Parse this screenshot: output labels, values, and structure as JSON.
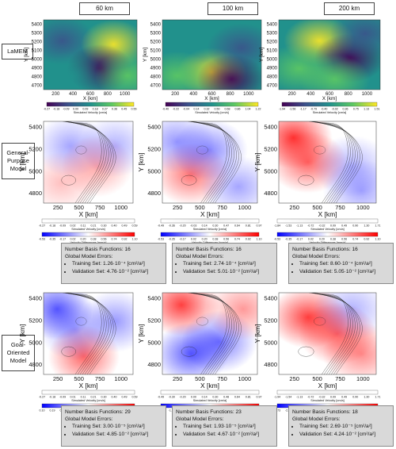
{
  "columns": [
    "60 km",
    "100 km",
    "200 km"
  ],
  "rows": [
    "LaMEM",
    "General-Purpose Model",
    "Goal-Oriented Model"
  ],
  "axes": {
    "xlabel": "X [km]",
    "ylabel": "Y [km]",
    "x_ticks_top": [
      "200",
      "400",
      "600",
      "800",
      "1000"
    ],
    "y_ticks_top": [
      "4700",
      "4800",
      "4900",
      "5000",
      "5100",
      "5200",
      "5300",
      "5400"
    ],
    "x_ticks": [
      "250",
      "500",
      "750",
      "1000"
    ],
    "y_ticks": [
      "4800",
      "5000",
      "5200",
      "5400"
    ]
  },
  "colorbar_labels": {
    "velocity": "Simulated Velocity [cm/a]",
    "difference": "Velocity Differences [mm/a]"
  },
  "colorbars": {
    "lamem": [
      [
        "-0.27",
        "-0.18",
        "-0.09",
        "0.00",
        "0.09",
        "0.18",
        "0.27",
        "0.36",
        "0.45",
        "0.55"
      ],
      [
        "-0.40",
        "-0.22",
        "-0.04",
        "0.14",
        "0.32",
        "0.50",
        "0.68",
        "0.86",
        "1.04",
        "1.22"
      ],
      [
        "-1.94",
        "-1.56",
        "-1.17",
        "-0.79",
        "-0.40",
        "-0.02",
        "0.36",
        "0.75",
        "1.13",
        "1.51"
      ]
    ],
    "gp_velocity": [
      [
        "-0.27",
        "-0.18",
        "-0.09",
        "0.02",
        "0.11",
        "0.21",
        "0.30",
        "0.40",
        "0.49",
        "0.59"
      ],
      [
        "-0.49",
        "-0.36",
        "-0.20",
        "-0.03",
        "0.14",
        "0.30",
        "0.47",
        "0.64",
        "0.81",
        "0.97"
      ],
      [
        "-1.84",
        "-1.53",
        "-1.13",
        "-0.72",
        "-0.32",
        "0.09",
        "0.49",
        "0.90",
        "1.30",
        "1.71"
      ]
    ],
    "gp_difference": [
      [
        "-0.53",
        "-0.35",
        "-0.17",
        "0.02",
        "0.20",
        "0.38",
        "0.56",
        "0.74",
        "0.92",
        "1.10"
      ],
      [
        "-0.53",
        "-0.35",
        "-0.17",
        "0.02",
        "0.20",
        "0.38",
        "0.56",
        "0.74",
        "0.92",
        "1.10"
      ],
      [
        "-0.53",
        "-0.35",
        "-0.17",
        "0.02",
        "0.20",
        "0.38",
        "0.56",
        "0.74",
        "0.92",
        "1.10"
      ]
    ],
    "go_velocity": [
      [
        "-0.27",
        "-0.18",
        "-0.09",
        "0.01",
        "0.11",
        "0.21",
        "0.30",
        "0.40",
        "0.49",
        "0.59"
      ],
      [
        "-0.49",
        "-0.30",
        "-0.20",
        "0.00",
        "0.14",
        "0.30",
        "0.48",
        "0.64",
        "0.81",
        "0.97"
      ],
      [
        "-1.94",
        "-1.54",
        "-1.13",
        "-0.72",
        "-0.32",
        "0.09",
        "0.49",
        "0.90",
        "1.30",
        "1.71"
      ]
    ],
    "go_difference": [
      [
        "0.10",
        "0.19",
        "0.30",
        "0.41",
        "0.52",
        "0.62",
        "0.73",
        "0.84",
        "0.95",
        "1.05"
      ],
      [
        "-1.16",
        "-1.02",
        "-0.87",
        "-0.73",
        "-0.58",
        "-0.44",
        "-0.29",
        "-0.15",
        "0.00",
        "0.14"
      ],
      [
        "-2.73",
        "-2.18",
        "-1.63",
        "-1.09",
        "-0.54",
        "0.00",
        "0.55",
        "1.10",
        "1.64",
        "2.19"
      ]
    ]
  },
  "gp_info": [
    {
      "nbf": "Number Basis Functions: 16",
      "gme": "Global Model Errors:",
      "train": "Training Set: 1.26·10⁻⁴ [cm²/a²]",
      "val": "Validation Set: 4.76·10⁻² [cm²/a²]"
    },
    {
      "nbf": "Number Basis Functions: 16",
      "gme": "Global Model Errors:",
      "train": "Training Set: 2.74·10⁻⁴ [cm²/a²]",
      "val": "Validation Set: 5.01·10⁻² [cm²/a²]"
    },
    {
      "nbf": "Number Basis Functions: 16",
      "gme": "Global Model Errors:",
      "train": "Training Set: 8.60·10⁻⁴ [cm²/a²]",
      "val": "Validation Set: 5.05·10⁻² [cm²/a²]"
    }
  ],
  "go_info": [
    {
      "nbf": "Number Basis Functions: 29",
      "gme": "Global Model Errors:",
      "train": "Training Set: 3.00·10⁻⁵ [cm²/a²]",
      "val": "Validation Set: 4.85·10⁻² [cm²/a²]"
    },
    {
      "nbf": "Number Basis Functions: 23",
      "gme": "Global Model Errors:",
      "train": "Training Set: 1.93·10⁻⁵ [cm²/a²]",
      "val": "Validation Set: 4.67·10⁻² [cm²/a²]"
    },
    {
      "nbf": "Number Basis Functions: 18",
      "gme": "Global Model Errors:",
      "train": "Training Set: 2.69·10⁻⁵ [cm²/a²]",
      "val": "Validation Set: 4.24·10⁻² [cm²/a²]"
    }
  ],
  "colors": {
    "viridis": [
      "#440154",
      "#3b528b",
      "#21918c",
      "#5ec962",
      "#fde725"
    ],
    "diverging": [
      "#0000ff",
      "#ffffff",
      "#ff0000"
    ],
    "panel_bg": "#d9d9d9"
  }
}
